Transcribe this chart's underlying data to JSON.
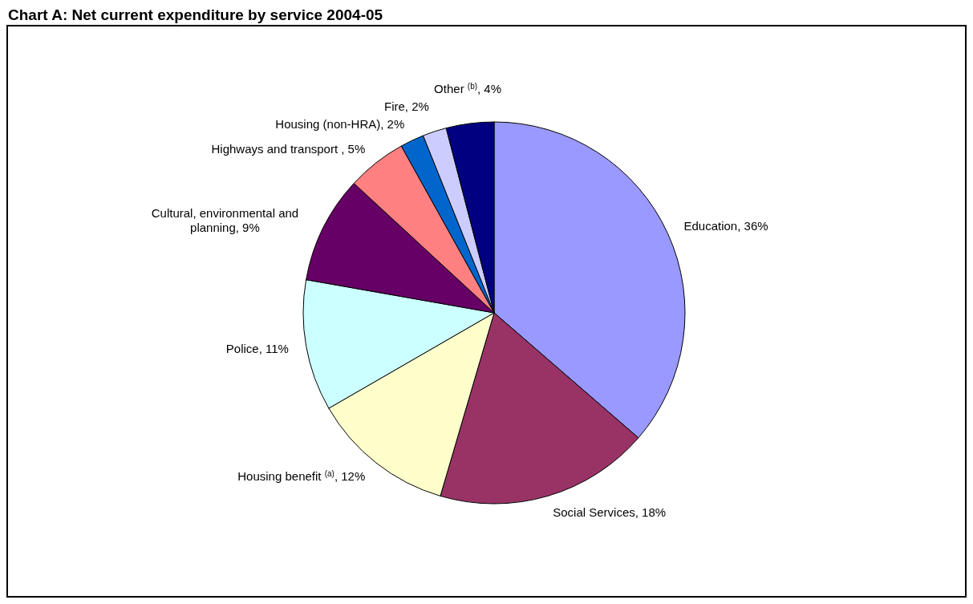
{
  "chart_data": {
    "type": "pie",
    "title": "Chart A: Net current expenditure by service 2004-05",
    "categories": [
      "Education",
      "Social Services",
      "Housing benefit $^{(a)}$",
      "Police",
      "Cultural, environmental and planning",
      "Highways and transport ",
      "Housing (non-HRA)",
      "Fire",
      "Other $^{(b)}$"
    ],
    "values": [
      36,
      18,
      12,
      11,
      9,
      5,
      2,
      2,
      4
    ],
    "value_labels": [
      ", 36%",
      ", 18%",
      ", 12%",
      ", 11%",
      ", 9%",
      ", 5%",
      ", 2%",
      ", 2%",
      ", 4%"
    ],
    "colors": [
      "#9999ff",
      "#993366",
      "#ffffcc",
      "#ccffff",
      "#660066",
      "#ff8080",
      "#0066cc",
      "#ccccff",
      "#000080"
    ]
  }
}
